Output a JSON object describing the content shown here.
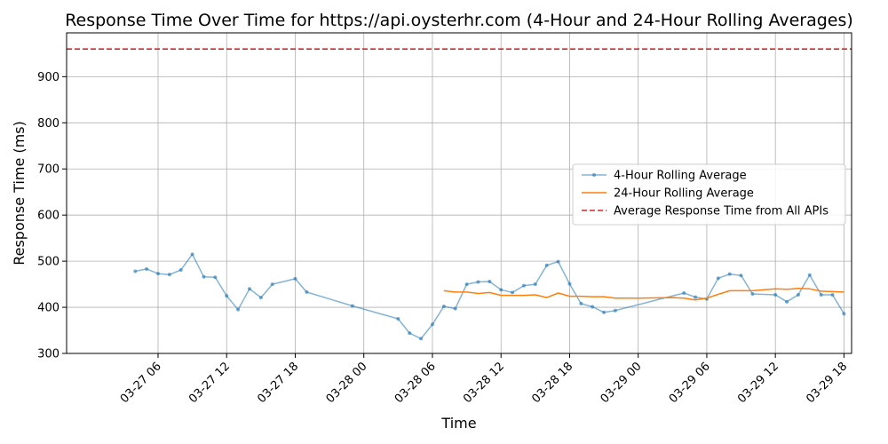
{
  "chart_data": {
    "type": "line",
    "title": "Response Time Over Time for https://api.oysterhr.com (4-Hour and 24-Hour Rolling Averages)",
    "xlabel": "Time",
    "ylabel": "Response Time (ms)",
    "xlim": [
      "2026-03-26T22:00",
      "2026-03-29T18:40"
    ],
    "ylim": [
      300,
      995
    ],
    "grid": true,
    "legend_position": "center-right",
    "x_ticks": [
      {
        "t": "2026-03-27T06:00",
        "label": "03-27 06"
      },
      {
        "t": "2026-03-27T12:00",
        "label": "03-27 12"
      },
      {
        "t": "2026-03-27T18:00",
        "label": "03-27 18"
      },
      {
        "t": "2026-03-28T00:00",
        "label": "03-28 00"
      },
      {
        "t": "2026-03-28T06:00",
        "label": "03-28 06"
      },
      {
        "t": "2026-03-28T12:00",
        "label": "03-28 12"
      },
      {
        "t": "2026-03-28T18:00",
        "label": "03-28 18"
      },
      {
        "t": "2026-03-29T00:00",
        "label": "03-29 00"
      },
      {
        "t": "2026-03-29T06:00",
        "label": "03-29 06"
      },
      {
        "t": "2026-03-29T12:00",
        "label": "03-29 12"
      },
      {
        "t": "2026-03-29T18:00",
        "label": "03-29 18"
      }
    ],
    "y_ticks": [
      300,
      400,
      500,
      600,
      700,
      800,
      900
    ],
    "series": [
      {
        "name": "4-Hour Rolling Average",
        "color": "#1f77b4",
        "style": "line-with-markers",
        "points": [
          {
            "t": "2026-03-27T04:00",
            "y": 478
          },
          {
            "t": "2026-03-27T05:00",
            "y": 483
          },
          {
            "t": "2026-03-27T06:00",
            "y": 473
          },
          {
            "t": "2026-03-27T07:00",
            "y": 471
          },
          {
            "t": "2026-03-27T08:00",
            "y": 481
          },
          {
            "t": "2026-03-27T09:00",
            "y": 515
          },
          {
            "t": "2026-03-27T10:00",
            "y": 466
          },
          {
            "t": "2026-03-27T11:00",
            "y": 465
          },
          {
            "t": "2026-03-27T12:00",
            "y": 425
          },
          {
            "t": "2026-03-27T13:00",
            "y": 395
          },
          {
            "t": "2026-03-27T14:00",
            "y": 440
          },
          {
            "t": "2026-03-27T15:00",
            "y": 421
          },
          {
            "t": "2026-03-27T16:00",
            "y": 450
          },
          {
            "t": "2026-03-27T18:00",
            "y": 462
          },
          {
            "t": "2026-03-27T19:00",
            "y": 433
          },
          {
            "t": "2026-03-27T23:00",
            "y": 403
          },
          {
            "t": "2026-03-28T03:00",
            "y": 375
          },
          {
            "t": "2026-03-28T04:00",
            "y": 344
          },
          {
            "t": "2026-03-28T05:00",
            "y": 332
          },
          {
            "t": "2026-03-28T06:00",
            "y": 363
          },
          {
            "t": "2026-03-28T07:00",
            "y": 402
          },
          {
            "t": "2026-03-28T08:00",
            "y": 397
          },
          {
            "t": "2026-03-28T09:00",
            "y": 450
          },
          {
            "t": "2026-03-28T10:00",
            "y": 455
          },
          {
            "t": "2026-03-28T11:00",
            "y": 456
          },
          {
            "t": "2026-03-28T12:00",
            "y": 438
          },
          {
            "t": "2026-03-28T13:00",
            "y": 432
          },
          {
            "t": "2026-03-28T14:00",
            "y": 447
          },
          {
            "t": "2026-03-28T15:00",
            "y": 450
          },
          {
            "t": "2026-03-28T16:00",
            "y": 491
          },
          {
            "t": "2026-03-28T17:00",
            "y": 499
          },
          {
            "t": "2026-03-28T18:00",
            "y": 451
          },
          {
            "t": "2026-03-28T19:00",
            "y": 408
          },
          {
            "t": "2026-03-28T20:00",
            "y": 401
          },
          {
            "t": "2026-03-28T21:00",
            "y": 389
          },
          {
            "t": "2026-03-28T22:00",
            "y": 393
          },
          {
            "t": "2026-03-29T04:00",
            "y": 431
          },
          {
            "t": "2026-03-29T05:00",
            "y": 422
          },
          {
            "t": "2026-03-29T06:00",
            "y": 418
          },
          {
            "t": "2026-03-29T07:00",
            "y": 463
          },
          {
            "t": "2026-03-29T08:00",
            "y": 472
          },
          {
            "t": "2026-03-29T09:00",
            "y": 469
          },
          {
            "t": "2026-03-29T10:00",
            "y": 429
          },
          {
            "t": "2026-03-29T12:00",
            "y": 427
          },
          {
            "t": "2026-03-29T13:00",
            "y": 412
          },
          {
            "t": "2026-03-29T14:00",
            "y": 427
          },
          {
            "t": "2026-03-29T15:00",
            "y": 470
          },
          {
            "t": "2026-03-29T16:00",
            "y": 427
          },
          {
            "t": "2026-03-29T17:00",
            "y": 427
          },
          {
            "t": "2026-03-29T18:00",
            "y": 386
          }
        ]
      },
      {
        "name": "24-Hour Rolling Average",
        "color": "#ff7f0e",
        "style": "line",
        "points": [
          {
            "t": "2026-03-28T07:00",
            "y": 436
          },
          {
            "t": "2026-03-28T08:00",
            "y": 433
          },
          {
            "t": "2026-03-28T09:00",
            "y": 433
          },
          {
            "t": "2026-03-28T10:00",
            "y": 430
          },
          {
            "t": "2026-03-28T11:00",
            "y": 432
          },
          {
            "t": "2026-03-28T12:00",
            "y": 426
          },
          {
            "t": "2026-03-28T13:00",
            "y": 426
          },
          {
            "t": "2026-03-28T14:00",
            "y": 426
          },
          {
            "t": "2026-03-28T15:00",
            "y": 427
          },
          {
            "t": "2026-03-28T16:00",
            "y": 421
          },
          {
            "t": "2026-03-28T17:00",
            "y": 431
          },
          {
            "t": "2026-03-28T18:00",
            "y": 424
          },
          {
            "t": "2026-03-28T19:00",
            "y": 424
          },
          {
            "t": "2026-03-28T20:00",
            "y": 423
          },
          {
            "t": "2026-03-28T21:00",
            "y": 423
          },
          {
            "t": "2026-03-28T22:00",
            "y": 420
          },
          {
            "t": "2026-03-29T00:00",
            "y": 420
          },
          {
            "t": "2026-03-29T03:00",
            "y": 421
          },
          {
            "t": "2026-03-29T04:00",
            "y": 420
          },
          {
            "t": "2026-03-29T05:00",
            "y": 416
          },
          {
            "t": "2026-03-29T06:00",
            "y": 420
          },
          {
            "t": "2026-03-29T07:00",
            "y": 428
          },
          {
            "t": "2026-03-29T08:00",
            "y": 436
          },
          {
            "t": "2026-03-29T09:00",
            "y": 436
          },
          {
            "t": "2026-03-29T10:00",
            "y": 436
          },
          {
            "t": "2026-03-29T12:00",
            "y": 440
          },
          {
            "t": "2026-03-29T13:00",
            "y": 439
          },
          {
            "t": "2026-03-29T14:00",
            "y": 441
          },
          {
            "t": "2026-03-29T15:00",
            "y": 440
          },
          {
            "t": "2026-03-29T16:00",
            "y": 435
          },
          {
            "t": "2026-03-29T17:00",
            "y": 434
          },
          {
            "t": "2026-03-29T18:00",
            "y": 433
          }
        ]
      }
    ],
    "reference_lines": [
      {
        "name": "Average Response Time from All APIs",
        "y": 960,
        "color": "#d62728",
        "style": "dashed"
      }
    ]
  }
}
